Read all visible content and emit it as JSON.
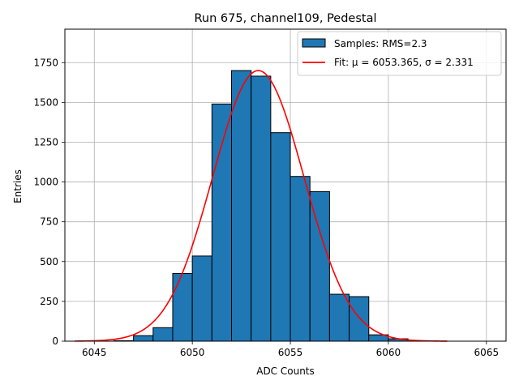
{
  "chart_data": {
    "type": "bar",
    "title": "Run 675, channel109, Pedestal",
    "xlabel": "ADC Counts",
    "ylabel": "Entries",
    "xlim": [
      6043.5,
      6066.0
    ],
    "ylim": [
      0,
      1960
    ],
    "xticks": [
      6045,
      6050,
      6055,
      6060,
      6065
    ],
    "xtick_labels": [
      "6045",
      "6050",
      "6055",
      "6060",
      "6065"
    ],
    "yticks": [
      0,
      250,
      500,
      750,
      1000,
      1250,
      1500,
      1750
    ],
    "ytick_labels": [
      "0",
      "250",
      "500",
      "750",
      "1000",
      "1250",
      "1500",
      "1750"
    ],
    "grid": true,
    "legend_position": "top-right",
    "histogram": {
      "label": "Samples: RMS=2.3",
      "bin_width": 1,
      "bin_starts": [
        6046,
        6047,
        6048,
        6049,
        6050,
        6051,
        6052,
        6053,
        6054,
        6055,
        6056,
        6057,
        6058,
        6059,
        6060
      ],
      "counts": [
        3,
        35,
        85,
        425,
        535,
        1490,
        1700,
        1665,
        1310,
        1035,
        940,
        295,
        280,
        40,
        15
      ],
      "color": "#1f77b4",
      "edge_color": "#000000"
    },
    "fit": {
      "label": "Fit: μ = 6053.365, σ = 2.331",
      "mu": 6053.365,
      "sigma": 2.331,
      "amplitude": 1700,
      "x_range": [
        6044,
        6063
      ],
      "color": "#ff0000"
    }
  }
}
